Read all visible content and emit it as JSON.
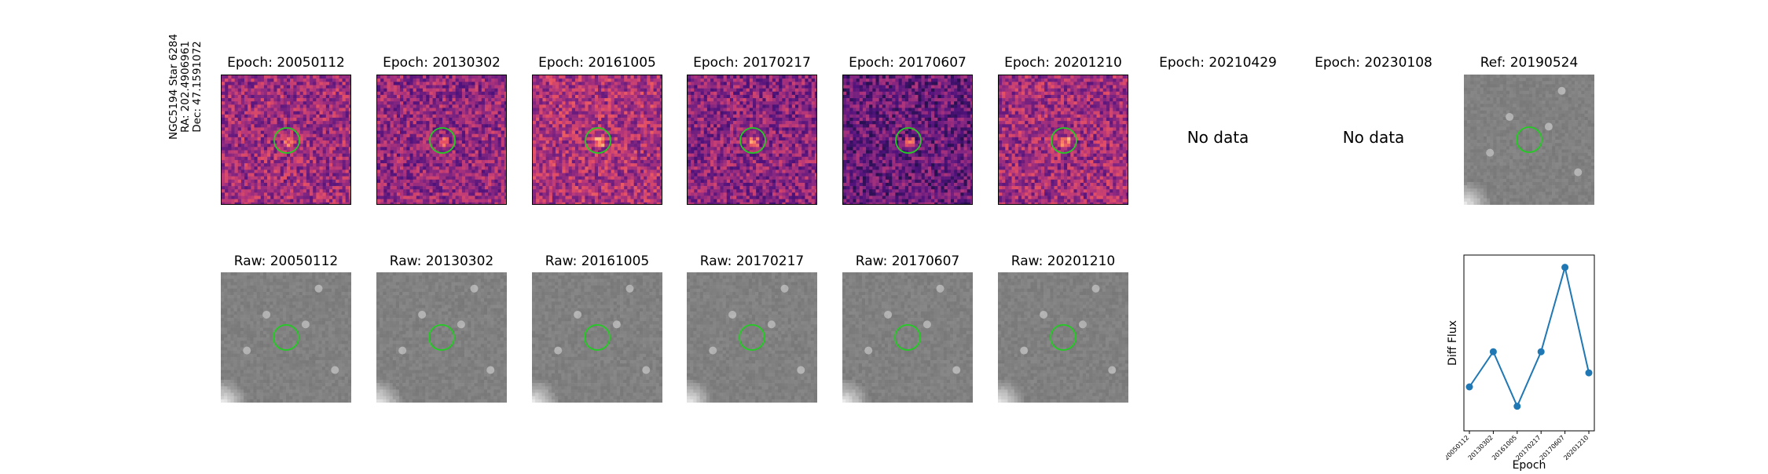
{
  "star_info": {
    "line1": "NGC5194 Star 6284",
    "line2": "RA: 202.4906961",
    "line3": "Dec: 47.1591072"
  },
  "epoch_panels": [
    {
      "title": "Epoch: 20050112",
      "has_data": true
    },
    {
      "title": "Epoch: 20130302",
      "has_data": true
    },
    {
      "title": "Epoch: 20161005",
      "has_data": true
    },
    {
      "title": "Epoch: 20170217",
      "has_data": true
    },
    {
      "title": "Epoch: 20170607",
      "has_data": true
    },
    {
      "title": "Epoch: 20201210",
      "has_data": true
    },
    {
      "title": "Epoch: 20210429",
      "has_data": false,
      "note": "No data"
    },
    {
      "title": "Epoch: 20230108",
      "has_data": false,
      "note": "No data"
    }
  ],
  "ref_panel": {
    "title": "Ref: 20190524"
  },
  "raw_panels": [
    {
      "title": "Raw: 20050112"
    },
    {
      "title": "Raw: 20130302"
    },
    {
      "title": "Raw: 20161005"
    },
    {
      "title": "Raw: 20170217"
    },
    {
      "title": "Raw: 20170607"
    },
    {
      "title": "Raw: 20201210"
    }
  ],
  "colors": {
    "circle": "#22cc22",
    "line": "#1f77b4"
  },
  "chart_data": {
    "type": "line",
    "title": "",
    "xlabel": "Epoch",
    "ylabel": "Diff Flux",
    "categories": [
      "20050112",
      "20130302",
      "20161005",
      "20170217",
      "20170607",
      "20201210"
    ],
    "values": [
      0.25,
      0.45,
      0.14,
      0.45,
      0.93,
      0.33
    ],
    "ylim": [
      0,
      1
    ],
    "yticks_visible": false,
    "grid": false
  }
}
